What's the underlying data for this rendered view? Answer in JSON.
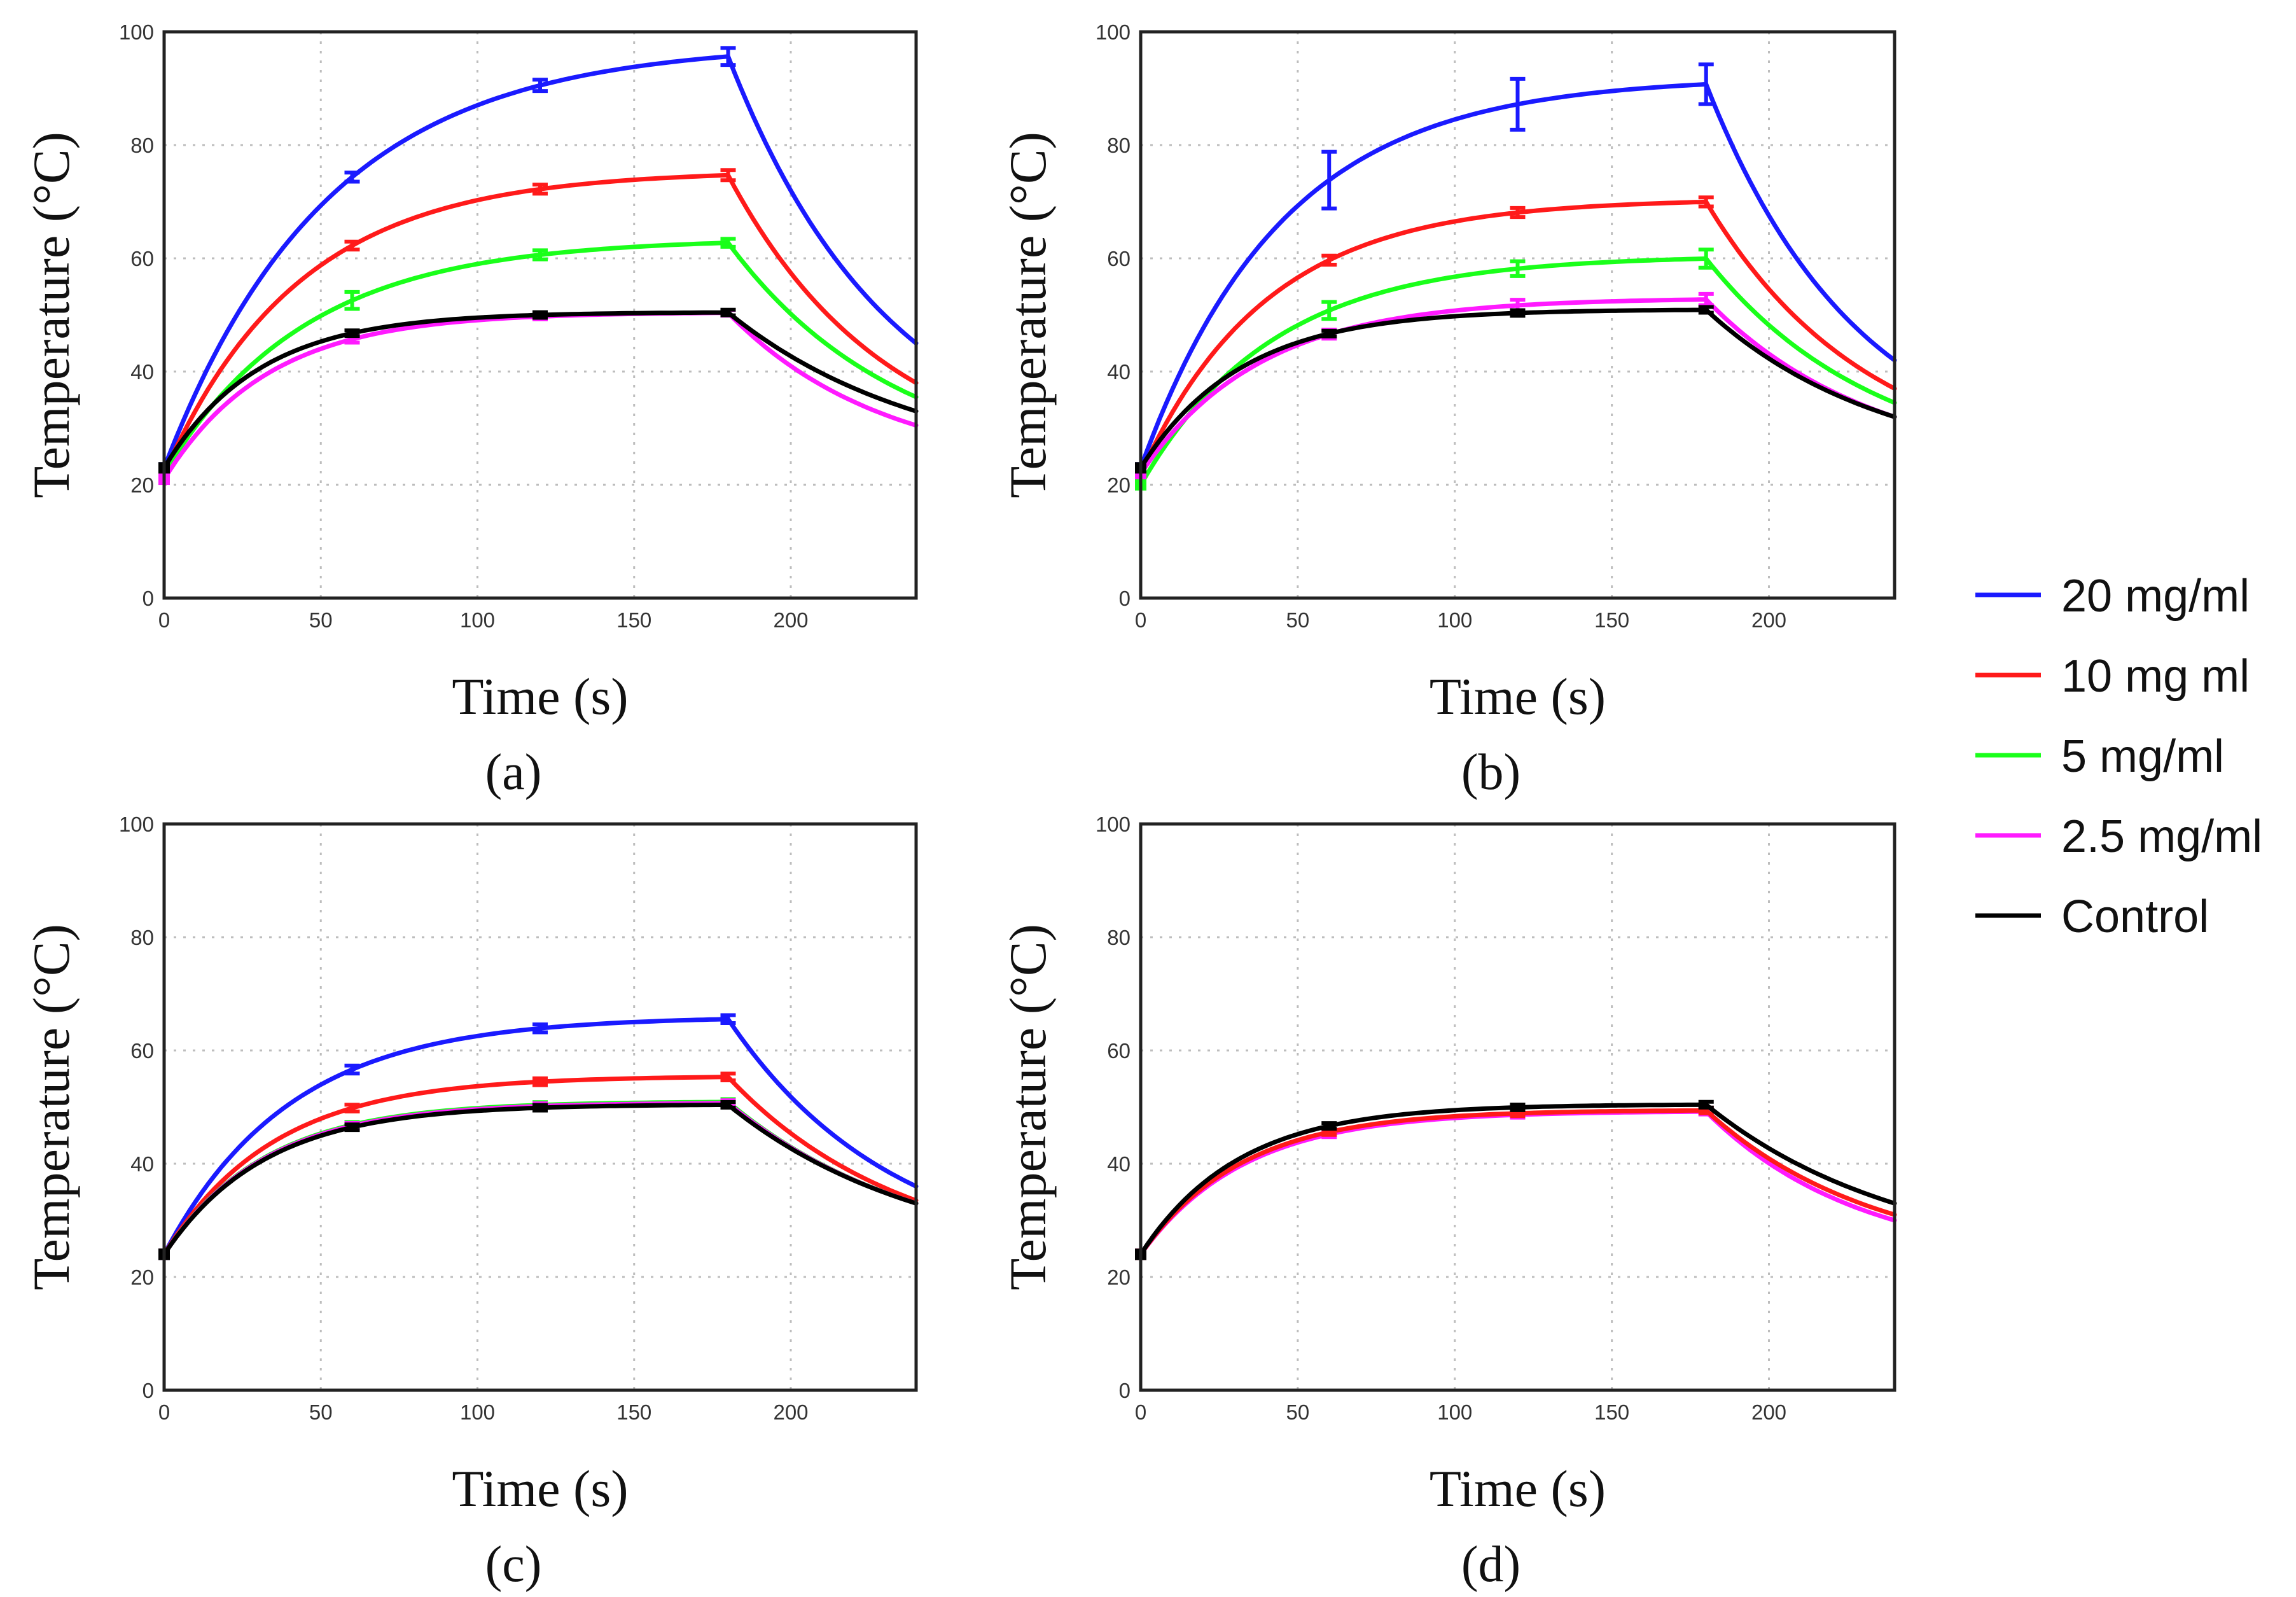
{
  "figure": {
    "legend": [
      {
        "name": "20 mg/ml",
        "color": "#1a1aff"
      },
      {
        "name": "10 mg ml",
        "color": "#ff1a1a"
      },
      {
        "name": "5 mg/ml",
        "color": "#1aff1a"
      },
      {
        "name": "2.5 mg/ml",
        "color": "#ff1aff"
      },
      {
        "name": "Control",
        "color": "#000000"
      }
    ]
  },
  "chart_data": [
    {
      "type": "line",
      "panel_label": "(a)",
      "xlabel": "Time (s)",
      "ylabel": "Temperature (°C)",
      "xlim": [
        0,
        240
      ],
      "ylim": [
        0,
        100
      ],
      "xticks": [
        "0",
        "50",
        "100",
        "150",
        "200"
      ],
      "yticks": [
        "0",
        "20",
        "40",
        "60",
        "80",
        "100"
      ],
      "grid": true,
      "series": [
        {
          "name": "20 mg/ml",
          "color": "#1a1aff",
          "start": 23,
          "plateau": 98,
          "tau": 52,
          "end": 45,
          "errors": [
            0.8,
            1.0,
            1.5
          ]
        },
        {
          "name": "10 mg ml",
          "color": "#ff1a1a",
          "start": 22,
          "plateau": 75.5,
          "tau": 43,
          "end": 38,
          "errors": [
            0.7,
            0.8,
            0.9
          ]
        },
        {
          "name": "5 mg/ml",
          "color": "#1aff1a",
          "start": 22,
          "plateau": 63.5,
          "tau": 45,
          "end": 35.5,
          "errors": [
            1.5,
            0.8,
            0.7
          ]
        },
        {
          "name": "2.5 mg/ml",
          "color": "#ff1aff",
          "start": 21,
          "plateau": 50.5,
          "tau": 33,
          "end": 30.5,
          "errors": [
            0.6,
            0.5,
            0.5
          ]
        },
        {
          "name": "Control",
          "color": "#000000",
          "start": 23,
          "plateau": 50.5,
          "tau": 30,
          "end": 33,
          "errors": [
            0.5,
            0.5,
            0.5
          ]
        }
      ]
    },
    {
      "type": "line",
      "panel_label": "(b)",
      "xlabel": "Time (s)",
      "ylabel": "Temperature (°C)",
      "xlim": [
        0,
        240
      ],
      "ylim": [
        0,
        100
      ],
      "xticks": [
        "0",
        "50",
        "100",
        "150",
        "200"
      ],
      "yticks": [
        "0",
        "20",
        "40",
        "60",
        "80",
        "100"
      ],
      "grid": true,
      "series": [
        {
          "name": "20 mg/ml",
          "color": "#1a1aff",
          "start": 23,
          "plateau": 92,
          "tau": 45,
          "end": 42,
          "errors": [
            5.0,
            4.5,
            3.5
          ]
        },
        {
          "name": "10 mg ml",
          "color": "#ff1a1a",
          "start": 22,
          "plateau": 70.5,
          "tau": 40,
          "end": 37,
          "errors": [
            0.8,
            0.8,
            0.8
          ]
        },
        {
          "name": "5 mg/ml",
          "color": "#1aff1a",
          "start": 20,
          "plateau": 60.5,
          "tau": 42,
          "end": 34.5,
          "errors": [
            1.5,
            1.3,
            1.6
          ]
        },
        {
          "name": "2.5 mg/ml",
          "color": "#ff1aff",
          "start": 22,
          "plateau": 53,
          "tau": 38,
          "end": 32,
          "errors": [
            0.8,
            1.0,
            1.0
          ]
        },
        {
          "name": "Control",
          "color": "#000000",
          "start": 23,
          "plateau": 51,
          "tau": 32,
          "end": 32,
          "errors": [
            0.5,
            0.5,
            0.5
          ]
        }
      ]
    },
    {
      "type": "line",
      "panel_label": "(c)",
      "xlabel": "Time (s)",
      "ylabel": "Temperature (°C)",
      "xlim": [
        0,
        240
      ],
      "ylim": [
        0,
        100
      ],
      "xticks": [
        "0",
        "50",
        "100",
        "150",
        "200"
      ],
      "yticks": [
        "0",
        "20",
        "40",
        "60",
        "80",
        "100"
      ],
      "grid": true,
      "series": [
        {
          "name": "20 mg/ml",
          "color": "#1a1aff",
          "start": 24,
          "plateau": 66,
          "tau": 40,
          "end": 36,
          "errors": [
            0.7,
            0.7,
            0.7
          ]
        },
        {
          "name": "10 mg ml",
          "color": "#ff1a1a",
          "start": 24,
          "plateau": 55.5,
          "tau": 35,
          "end": 33.5,
          "errors": [
            0.6,
            0.6,
            0.6
          ]
        },
        {
          "name": "5 mg/ml",
          "color": "#1aff1a",
          "start": 24,
          "plateau": 51,
          "tau": 32,
          "end": 33,
          "errors": [
            0.5,
            0.5,
            0.5
          ]
        },
        {
          "name": "2.5 mg/ml",
          "color": "#ff1aff",
          "start": 24,
          "plateau": 50.8,
          "tau": 32,
          "end": 33,
          "errors": [
            0.5,
            0.5,
            0.5
          ]
        },
        {
          "name": "Control",
          "color": "#000000",
          "start": 24,
          "plateau": 50.5,
          "tau": 32,
          "end": 33,
          "errors": [
            0.5,
            0.5,
            0.5
          ]
        }
      ]
    },
    {
      "type": "line",
      "panel_label": "(d)",
      "xlabel": "Time (s)",
      "ylabel": "Temperature (°C)",
      "xlim": [
        0,
        240
      ],
      "ylim": [
        0,
        100
      ],
      "xticks": [
        "0",
        "50",
        "100",
        "150",
        "200"
      ],
      "yticks": [
        "0",
        "20",
        "40",
        "60",
        "80",
        "100"
      ],
      "grid": true,
      "series": [
        {
          "name": "2.5 mg/ml",
          "color": "#ff1aff",
          "start": 24,
          "plateau": 49.3,
          "tau": 33,
          "end": 30,
          "errors": [
            0.5,
            0.5,
            0.5
          ]
        },
        {
          "name": "10 mg ml",
          "color": "#ff1a1a",
          "start": 24,
          "plateau": 49.5,
          "tau": 32,
          "end": 31,
          "errors": [
            0.5,
            0.5,
            0.5
          ]
        },
        {
          "name": "Control",
          "color": "#000000",
          "start": 24,
          "plateau": 50.5,
          "tau": 31,
          "end": 33,
          "errors": [
            0.5,
            0.5,
            0.5
          ]
        }
      ]
    }
  ]
}
